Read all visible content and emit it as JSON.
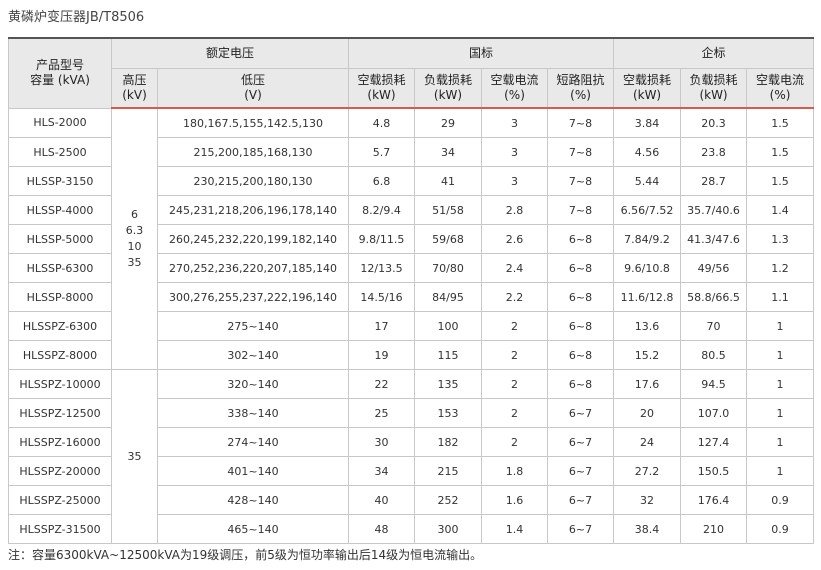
{
  "title": "黄磷炉变压器JB/T8506",
  "header": {
    "model": "产品型号",
    "capacity": "容量 (kVA)",
    "rated_voltage": "额定电压",
    "national": "国标",
    "enterprise": "企标",
    "hv_label": "高压",
    "hv_unit": "(kV)",
    "lv_label": "低压",
    "lv_unit": "(V)",
    "nl_loss": "空载损耗",
    "load_loss": "负载损耗",
    "nl_current": "空载电流",
    "impedance": "短路阻抗",
    "unit_kw": "(kW)",
    "unit_pct": "(%)"
  },
  "hv_group1": [
    "6",
    "6.3",
    "10",
    "35"
  ],
  "hv_group2": "35",
  "rows": [
    {
      "model": "HLS-2000",
      "lv": "180,167.5,155,142.5,130",
      "n_nl": "4.8",
      "n_load": "29",
      "n_cur": "3",
      "imp": "7~8",
      "e_nl": "3.84",
      "e_load": "20.3",
      "e_cur": "1.5"
    },
    {
      "model": "HLS-2500",
      "lv": "215,200,185,168,130",
      "n_nl": "5.7",
      "n_load": "34",
      "n_cur": "3",
      "imp": "7~8",
      "e_nl": "4.56",
      "e_load": "23.8",
      "e_cur": "1.5"
    },
    {
      "model": "HLSSP-3150",
      "lv": "230,215,200,180,130",
      "n_nl": "6.8",
      "n_load": "41",
      "n_cur": "3",
      "imp": "7~8",
      "e_nl": "5.44",
      "e_load": "28.7",
      "e_cur": "1.5"
    },
    {
      "model": "HLSSP-4000",
      "lv": "245,231,218,206,196,178,140",
      "n_nl": "8.2/9.4",
      "n_load": "51/58",
      "n_cur": "2.8",
      "imp": "7~8",
      "e_nl": "6.56/7.52",
      "e_load": "35.7/40.6",
      "e_cur": "1.4"
    },
    {
      "model": "HLSSP-5000",
      "lv": "260,245,232,220,199,182,140",
      "n_nl": "9.8/11.5",
      "n_load": "59/68",
      "n_cur": "2.6",
      "imp": "6~8",
      "e_nl": "7.84/9.2",
      "e_load": "41.3/47.6",
      "e_cur": "1.3"
    },
    {
      "model": "HLSSP-6300",
      "lv": "270,252,236,220,207,185,140",
      "n_nl": "12/13.5",
      "n_load": "70/80",
      "n_cur": "2.4",
      "imp": "6~8",
      "e_nl": "9.6/10.8",
      "e_load": "49/56",
      "e_cur": "1.2"
    },
    {
      "model": "HLSSP-8000",
      "lv": "300,276,255,237,222,196,140",
      "n_nl": "14.5/16",
      "n_load": "84/95",
      "n_cur": "2.2",
      "imp": "6~8",
      "e_nl": "11.6/12.8",
      "e_load": "58.8/66.5",
      "e_cur": "1.1"
    },
    {
      "model": "HLSSPZ-6300",
      "lv": "275~140",
      "n_nl": "17",
      "n_load": "100",
      "n_cur": "2",
      "imp": "6~8",
      "e_nl": "13.6",
      "e_load": "70",
      "e_cur": "1"
    },
    {
      "model": "HLSSPZ-8000",
      "lv": "302~140",
      "n_nl": "19",
      "n_load": "115",
      "n_cur": "2",
      "imp": "6~8",
      "e_nl": "15.2",
      "e_load": "80.5",
      "e_cur": "1"
    },
    {
      "model": "HLSSPZ-10000",
      "lv": "320~140",
      "n_nl": "22",
      "n_load": "135",
      "n_cur": "2",
      "imp": "6~8",
      "e_nl": "17.6",
      "e_load": "94.5",
      "e_cur": "1"
    },
    {
      "model": "HLSSPZ-12500",
      "lv": "338~140",
      "n_nl": "25",
      "n_load": "153",
      "n_cur": "2",
      "imp": "6~7",
      "e_nl": "20",
      "e_load": "107.0",
      "e_cur": "1"
    },
    {
      "model": "HLSSPZ-16000",
      "lv": "274~140",
      "n_nl": "30",
      "n_load": "182",
      "n_cur": "2",
      "imp": "6~7",
      "e_nl": "24",
      "e_load": "127.4",
      "e_cur": "1"
    },
    {
      "model": "HLSSPZ-20000",
      "lv": "401~140",
      "n_nl": "34",
      "n_load": "215",
      "n_cur": "1.8",
      "imp": "6~7",
      "e_nl": "27.2",
      "e_load": "150.5",
      "e_cur": "1"
    },
    {
      "model": "HLSSPZ-25000",
      "lv": "428~140",
      "n_nl": "40",
      "n_load": "252",
      "n_cur": "1.6",
      "imp": "6~7",
      "e_nl": "32",
      "e_load": "176.4",
      "e_cur": "0.9"
    },
    {
      "model": "HLSSPZ-31500",
      "lv": "465~140",
      "n_nl": "48",
      "n_load": "300",
      "n_cur": "1.4",
      "imp": "6~7",
      "e_nl": "38.4",
      "e_load": "210",
      "e_cur": "0.9"
    }
  ],
  "note": "注：容量6300kVA~12500kVA为19级调压，前5级为恒功率输出后14级为恒电流输出。"
}
